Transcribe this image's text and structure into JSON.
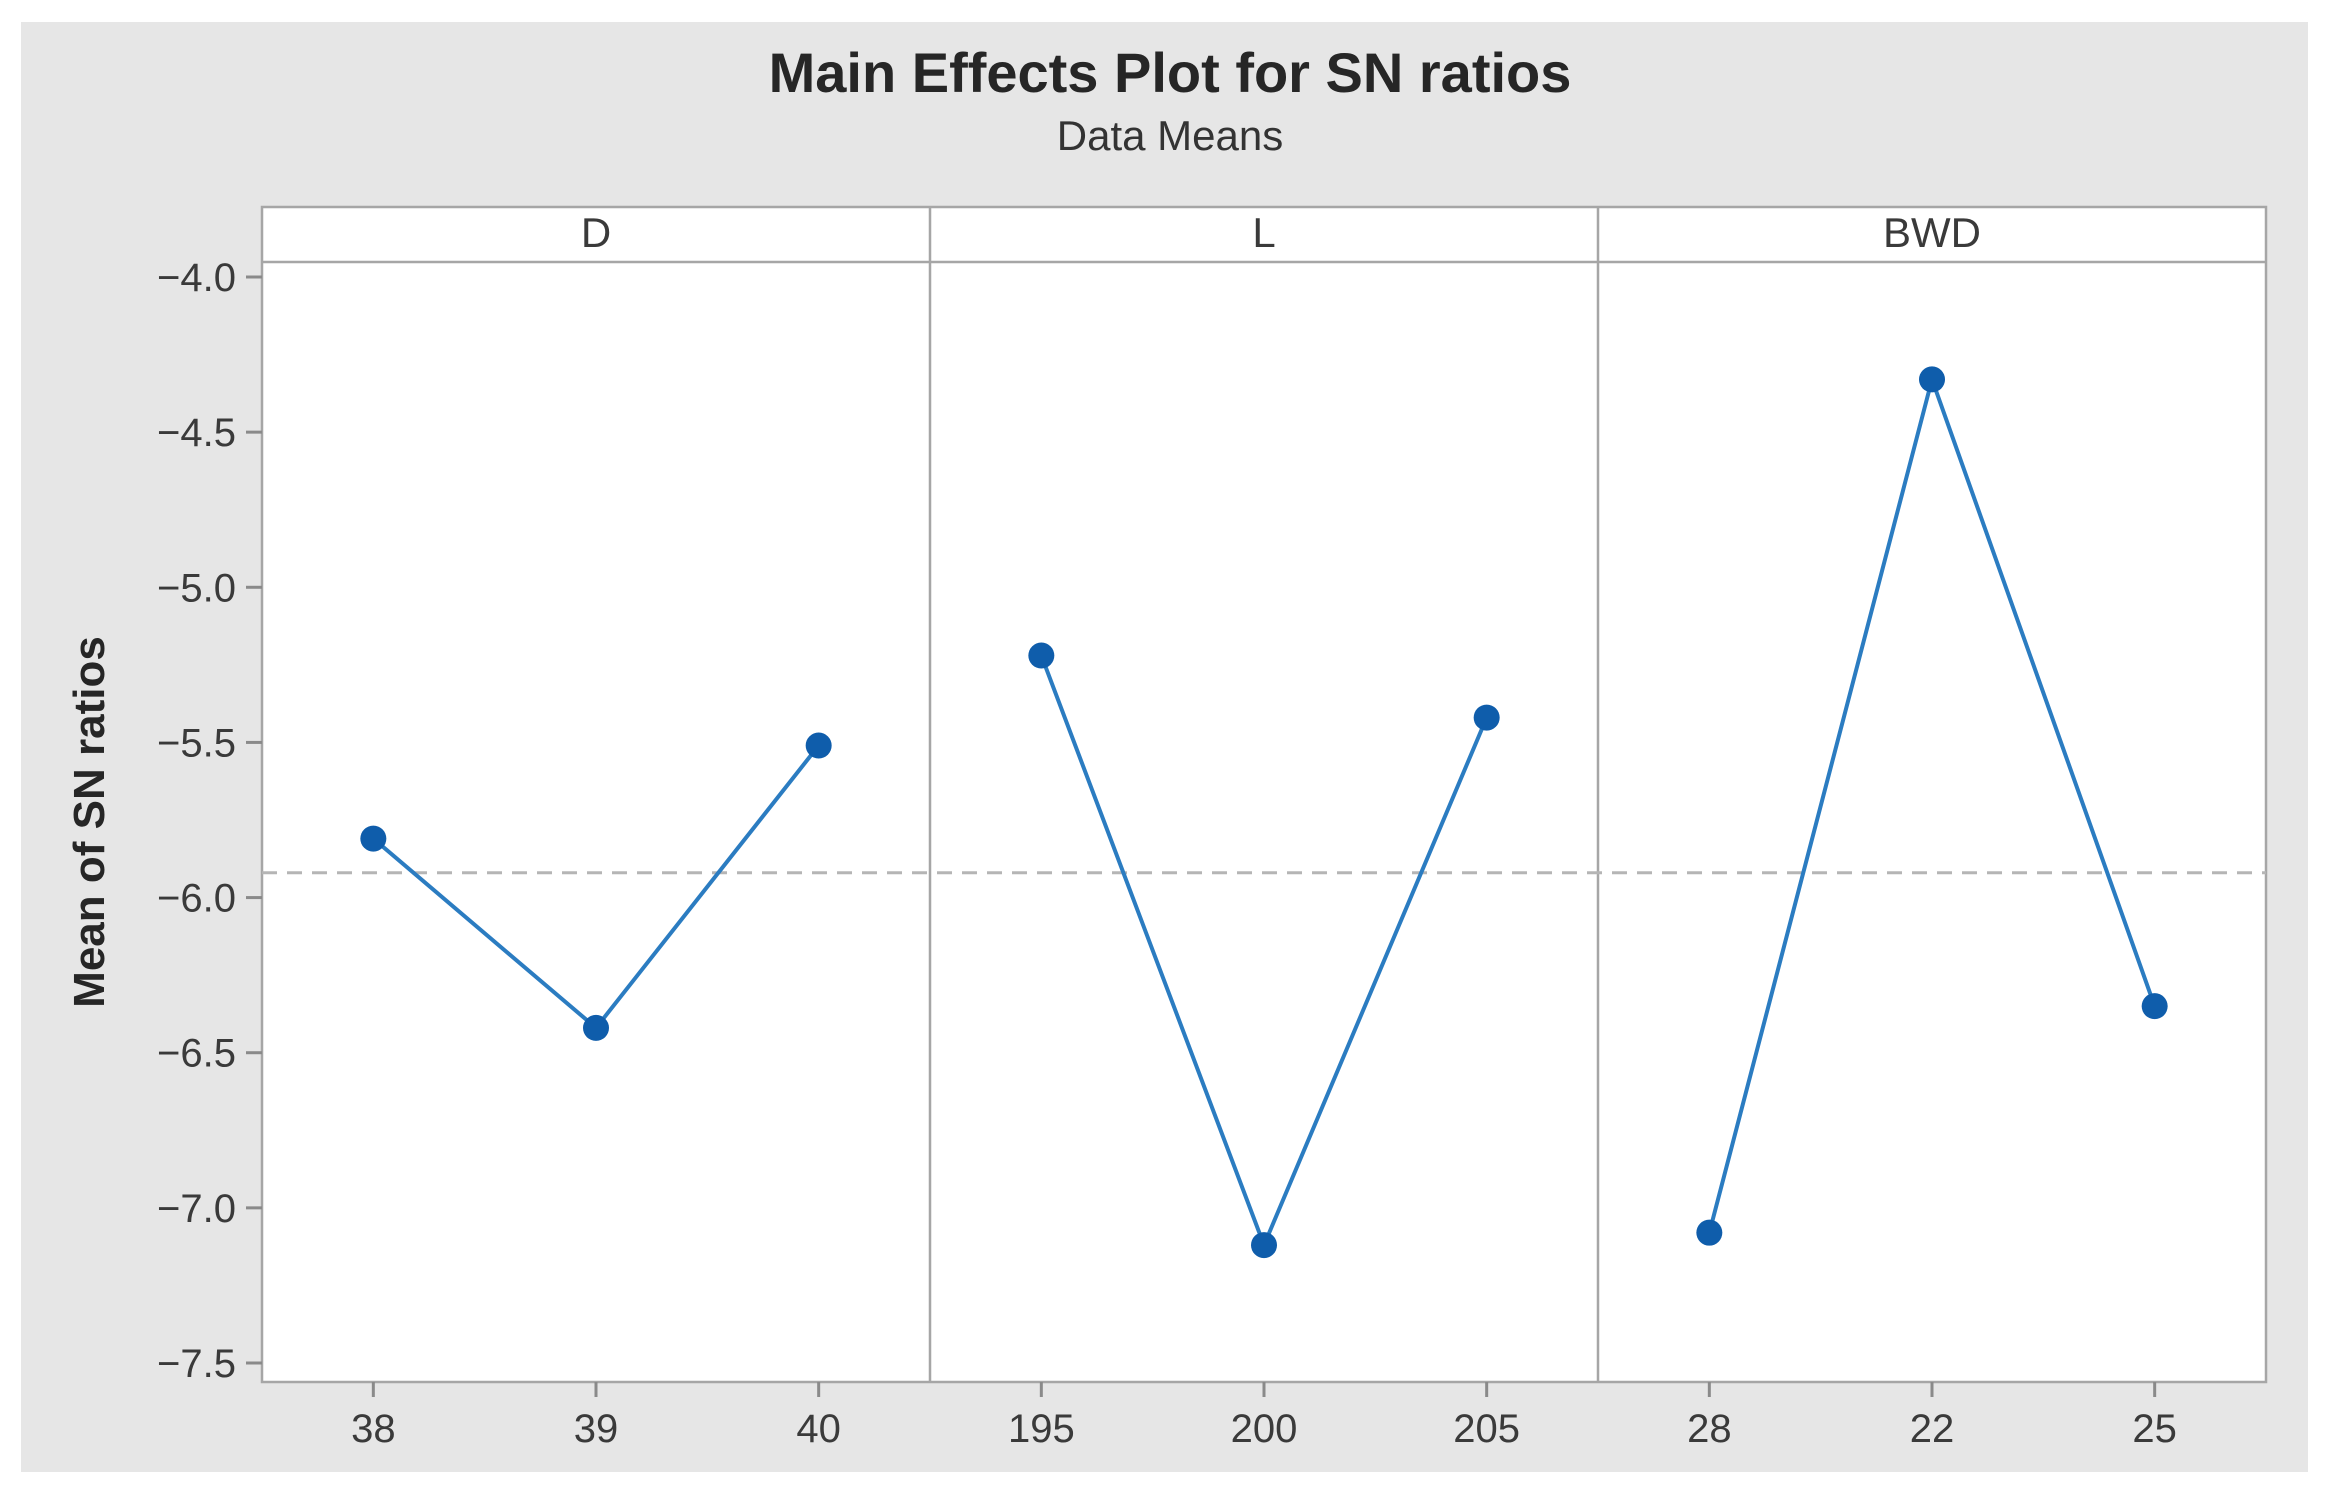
{
  "chart_data": {
    "type": "line",
    "title": "Main Effects Plot for SN ratios",
    "subtitle": "Data Means",
    "ylabel": "Mean of SN ratios",
    "ylim": [
      -7.5,
      -4.0
    ],
    "yticks": [
      -4.0,
      -4.5,
      -5.0,
      -5.5,
      -6.0,
      -6.5,
      -7.0,
      -7.5
    ],
    "ytick_labels": [
      "−4.0",
      "−4.5",
      "−5.0",
      "−5.5",
      "−6.0",
      "−6.5",
      "−7.0",
      "−7.5"
    ],
    "grand_mean": -5.92,
    "grid": "none",
    "legend_position": "none",
    "reference_line": "horizontal dashed line at grand mean of SN ratios",
    "panels": [
      {
        "label": "D",
        "categories": [
          "38",
          "39",
          "40"
        ],
        "values": [
          -5.81,
          -6.42,
          -5.51
        ]
      },
      {
        "label": "L",
        "categories": [
          "195",
          "200",
          "205"
        ],
        "values": [
          -5.22,
          -7.12,
          -5.42
        ]
      },
      {
        "label": "BWD",
        "categories": [
          "28",
          "22",
          "25"
        ],
        "values": [
          -7.08,
          -4.33,
          -6.35
        ]
      }
    ]
  },
  "colors": {
    "figure_bg": "#e6e6e6",
    "plot_bg": "#ffffff",
    "border": "#a6a6a6",
    "tick": "#8a8a8a",
    "mean_line": "#b5b5b5",
    "series_line": "#2b7cc1",
    "marker": "#0f5dab",
    "label_text": "#3a3a3a",
    "title_text": "#262626"
  }
}
